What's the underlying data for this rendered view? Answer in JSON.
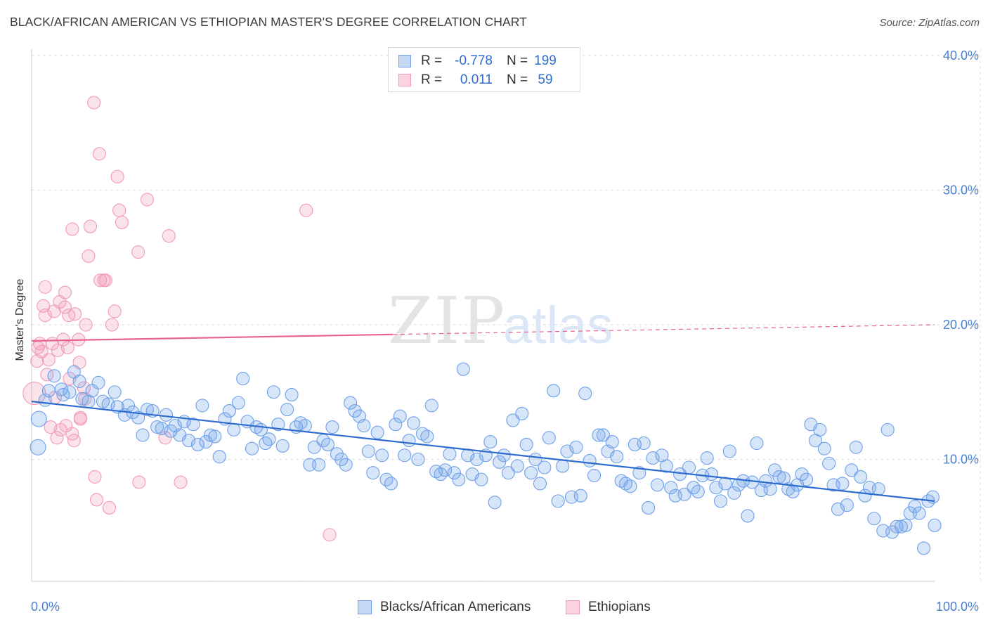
{
  "title": "BLACK/AFRICAN AMERICAN VS ETHIOPIAN MASTER'S DEGREE CORRELATION CHART",
  "source": "Source: ZipAtlas.com",
  "watermark": {
    "zip": "ZIP",
    "atlas": "atlas"
  },
  "legend": {
    "rows": [
      {
        "r_label": "R =",
        "r_value": "-0.778",
        "n_label": "N =",
        "n_value": "199",
        "color": "#6fa0e8"
      },
      {
        "r_label": "R =",
        "r_value": "0.011",
        "n_label": "N =",
        "n_value": "59",
        "color": "#f29ab6"
      }
    ]
  },
  "bottom_legend": [
    "Blacks/African Americans",
    "Ethiopians"
  ],
  "colors": {
    "blue": "#6fa0e8",
    "blue_line": "#2f6ccf",
    "pink": "#f29ab6",
    "pink_line": "#e8638f",
    "axis_text": "#4a7fd0"
  },
  "chart_data": {
    "type": "scatter",
    "ylabel": "Master's Degree",
    "x_tick_labels": [
      "0.0%",
      "100.0%"
    ],
    "y_tick_labels": [
      "10.0%",
      "20.0%",
      "30.0%",
      "40.0%"
    ],
    "xlim": [
      0,
      100
    ],
    "ylim": [
      0,
      40
    ],
    "grid": true,
    "series": [
      {
        "name": "Blacks/African Americans",
        "trend": {
          "x": [
            0,
            100
          ],
          "y": [
            14.3,
            6.9
          ]
        },
        "points": [
          [
            0.7,
            10.9
          ],
          [
            0.8,
            13.0
          ],
          [
            1.5,
            14.4
          ],
          [
            1.9,
            15.1
          ],
          [
            2.5,
            16.2
          ],
          [
            3.3,
            15.2
          ],
          [
            3.5,
            14.8
          ],
          [
            4.2,
            15.0
          ],
          [
            4.7,
            16.5
          ],
          [
            5.3,
            15.8
          ],
          [
            5.6,
            14.5
          ],
          [
            6.3,
            14.3
          ],
          [
            6.7,
            15.1
          ],
          [
            7.4,
            15.7
          ],
          [
            7.9,
            14.3
          ],
          [
            8.5,
            14.1
          ],
          [
            9.2,
            15.0
          ],
          [
            9.5,
            13.9
          ],
          [
            10.3,
            13.3
          ],
          [
            10.7,
            14.0
          ],
          [
            11.2,
            13.5
          ],
          [
            11.8,
            13.1
          ],
          [
            12.3,
            11.8
          ],
          [
            12.8,
            13.7
          ],
          [
            13.4,
            13.6
          ],
          [
            13.9,
            12.4
          ],
          [
            14.4,
            12.3
          ],
          [
            14.9,
            13.3
          ],
          [
            15.4,
            12.1
          ],
          [
            15.9,
            12.5
          ],
          [
            16.4,
            11.8
          ],
          [
            16.9,
            12.8
          ],
          [
            17.4,
            11.4
          ],
          [
            17.9,
            12.6
          ],
          [
            18.4,
            11.1
          ],
          [
            18.9,
            14.0
          ],
          [
            19.3,
            11.3
          ],
          [
            19.8,
            11.8
          ],
          [
            20.3,
            11.7
          ],
          [
            20.8,
            10.2
          ],
          [
            21.4,
            13.0
          ],
          [
            21.9,
            13.6
          ],
          [
            22.4,
            12.2
          ],
          [
            22.9,
            14.2
          ],
          [
            23.4,
            16.0
          ],
          [
            23.9,
            12.8
          ],
          [
            24.4,
            10.8
          ],
          [
            24.9,
            12.4
          ],
          [
            25.4,
            12.2
          ],
          [
            25.9,
            11.2
          ],
          [
            26.3,
            11.5
          ],
          [
            26.8,
            15.0
          ],
          [
            27.3,
            12.6
          ],
          [
            27.8,
            11.0
          ],
          [
            28.3,
            13.7
          ],
          [
            28.8,
            14.8
          ],
          [
            29.3,
            12.4
          ],
          [
            29.8,
            12.7
          ],
          [
            30.3,
            12.5
          ],
          [
            30.8,
            9.6
          ],
          [
            31.3,
            10.9
          ],
          [
            31.8,
            9.6
          ],
          [
            32.3,
            11.4
          ],
          [
            32.8,
            11.1
          ],
          [
            33.3,
            12.4
          ],
          [
            33.8,
            10.4
          ],
          [
            34.3,
            10.0
          ],
          [
            34.8,
            9.6
          ],
          [
            35.3,
            14.2
          ],
          [
            35.8,
            13.6
          ],
          [
            36.3,
            13.2
          ],
          [
            36.8,
            12.5
          ],
          [
            37.3,
            10.6
          ],
          [
            37.8,
            9.0
          ],
          [
            38.3,
            12.0
          ],
          [
            38.8,
            10.3
          ],
          [
            39.3,
            8.5
          ],
          [
            39.8,
            8.2
          ],
          [
            40.3,
            12.6
          ],
          [
            40.8,
            13.2
          ],
          [
            41.3,
            10.3
          ],
          [
            41.8,
            11.4
          ],
          [
            42.3,
            12.7
          ],
          [
            42.8,
            10.0
          ],
          [
            43.3,
            11.9
          ],
          [
            43.8,
            11.7
          ],
          [
            44.3,
            14.0
          ],
          [
            44.8,
            9.1
          ],
          [
            45.3,
            8.9
          ],
          [
            45.8,
            9.2
          ],
          [
            46.3,
            10.4
          ],
          [
            46.8,
            9.0
          ],
          [
            47.3,
            8.5
          ],
          [
            47.8,
            16.7
          ],
          [
            48.3,
            10.3
          ],
          [
            48.8,
            8.9
          ],
          [
            49.3,
            10.0
          ],
          [
            49.8,
            8.5
          ],
          [
            50.3,
            10.3
          ],
          [
            50.8,
            11.3
          ],
          [
            51.3,
            6.8
          ],
          [
            51.8,
            9.8
          ],
          [
            52.3,
            10.3
          ],
          [
            52.8,
            9.0
          ],
          [
            53.3,
            12.9
          ],
          [
            53.8,
            9.5
          ],
          [
            54.3,
            13.4
          ],
          [
            54.8,
            11.1
          ],
          [
            55.3,
            9.0
          ],
          [
            55.8,
            10.0
          ],
          [
            56.3,
            8.2
          ],
          [
            56.8,
            9.4
          ],
          [
            57.3,
            11.6
          ],
          [
            57.8,
            15.1
          ],
          [
            58.3,
            6.9
          ],
          [
            58.8,
            9.5
          ],
          [
            59.3,
            10.6
          ],
          [
            59.8,
            7.2
          ],
          [
            60.3,
            10.9
          ],
          [
            60.8,
            7.3
          ],
          [
            61.3,
            14.9
          ],
          [
            61.8,
            9.9
          ],
          [
            62.3,
            8.8
          ],
          [
            62.8,
            11.8
          ],
          [
            63.3,
            11.8
          ],
          [
            63.8,
            10.6
          ],
          [
            64.3,
            11.3
          ],
          [
            64.8,
            10.2
          ],
          [
            65.3,
            8.4
          ],
          [
            65.8,
            8.2
          ],
          [
            66.3,
            8.0
          ],
          [
            66.8,
            11.1
          ],
          [
            67.3,
            9.0
          ],
          [
            67.8,
            11.2
          ],
          [
            68.3,
            6.4
          ],
          [
            68.8,
            10.1
          ],
          [
            69.3,
            8.1
          ],
          [
            69.8,
            10.3
          ],
          [
            70.3,
            9.5
          ],
          [
            70.8,
            7.9
          ],
          [
            71.3,
            7.3
          ],
          [
            71.8,
            8.9
          ],
          [
            72.3,
            7.4
          ],
          [
            72.8,
            9.4
          ],
          [
            73.3,
            7.9
          ],
          [
            73.8,
            7.6
          ],
          [
            74.3,
            8.8
          ],
          [
            74.8,
            10.1
          ],
          [
            75.3,
            8.9
          ],
          [
            75.8,
            7.9
          ],
          [
            76.3,
            6.9
          ],
          [
            76.8,
            8.2
          ],
          [
            77.3,
            10.6
          ],
          [
            77.8,
            7.5
          ],
          [
            78.3,
            8.1
          ],
          [
            78.8,
            8.4
          ],
          [
            79.3,
            5.8
          ],
          [
            79.8,
            8.3
          ],
          [
            80.3,
            11.2
          ],
          [
            80.8,
            7.7
          ],
          [
            81.3,
            8.4
          ],
          [
            81.8,
            7.8
          ],
          [
            82.3,
            9.2
          ],
          [
            82.8,
            8.7
          ],
          [
            83.3,
            8.6
          ],
          [
            83.8,
            7.8
          ],
          [
            84.3,
            7.6
          ],
          [
            84.8,
            8.1
          ],
          [
            85.3,
            8.9
          ],
          [
            85.8,
            8.5
          ],
          [
            86.3,
            12.6
          ],
          [
            86.8,
            11.4
          ],
          [
            87.3,
            12.2
          ],
          [
            87.8,
            10.8
          ],
          [
            88.3,
            9.7
          ],
          [
            88.8,
            8.1
          ],
          [
            89.3,
            6.3
          ],
          [
            89.8,
            8.2
          ],
          [
            90.3,
            6.6
          ],
          [
            90.8,
            9.2
          ],
          [
            91.3,
            10.9
          ],
          [
            91.8,
            8.7
          ],
          [
            92.3,
            7.3
          ],
          [
            92.8,
            7.9
          ],
          [
            93.3,
            5.6
          ],
          [
            93.8,
            7.8
          ],
          [
            94.3,
            4.7
          ],
          [
            94.8,
            12.2
          ],
          [
            95.3,
            4.6
          ],
          [
            95.8,
            5.0
          ],
          [
            96.3,
            5.0
          ],
          [
            96.8,
            5.1
          ],
          [
            97.3,
            6.0
          ],
          [
            97.8,
            6.5
          ],
          [
            98.3,
            6.0
          ],
          [
            98.8,
            3.4
          ],
          [
            99.3,
            6.9
          ],
          [
            99.8,
            7.2
          ],
          [
            100.0,
            5.1
          ]
        ]
      },
      {
        "name": "Ethiopians",
        "trend": {
          "x": [
            0,
            100
          ],
          "y": [
            18.8,
            20.0
          ],
          "solid_until_x": 40
        },
        "points": [
          [
            0.3,
            14.9
          ],
          [
            0.6,
            17.3
          ],
          [
            0.7,
            18.3
          ],
          [
            0.9,
            18.6
          ],
          [
            1.1,
            18.0
          ],
          [
            1.3,
            21.4
          ],
          [
            1.5,
            20.7
          ],
          [
            1.5,
            22.8
          ],
          [
            1.7,
            16.3
          ],
          [
            1.9,
            17.4
          ],
          [
            2.1,
            12.4
          ],
          [
            2.3,
            18.6
          ],
          [
            2.5,
            21.0
          ],
          [
            2.8,
            11.6
          ],
          [
            2.9,
            18.1
          ],
          [
            3.1,
            21.7
          ],
          [
            3.2,
            12.2
          ],
          [
            3.5,
            18.9
          ],
          [
            3.7,
            22.4
          ],
          [
            3.7,
            21.3
          ],
          [
            3.8,
            12.5
          ],
          [
            4.0,
            18.3
          ],
          [
            4.1,
            20.7
          ],
          [
            4.5,
            11.9
          ],
          [
            4.5,
            27.1
          ],
          [
            4.7,
            11.4
          ],
          [
            4.8,
            20.8
          ],
          [
            5.2,
            18.9
          ],
          [
            5.4,
            13.1
          ],
          [
            5.4,
            13.0
          ],
          [
            5.8,
            15.3
          ],
          [
            5.9,
            14.5
          ],
          [
            6.0,
            20.0
          ],
          [
            6.3,
            25.1
          ],
          [
            6.5,
            27.3
          ],
          [
            6.9,
            36.5
          ],
          [
            7.0,
            8.7
          ],
          [
            7.2,
            7.0
          ],
          [
            7.5,
            32.7
          ],
          [
            7.6,
            23.3
          ],
          [
            8.0,
            23.3
          ],
          [
            8.2,
            23.3
          ],
          [
            8.6,
            6.4
          ],
          [
            8.9,
            20.0
          ],
          [
            9.2,
            21.0
          ],
          [
            9.5,
            31.0
          ],
          [
            9.7,
            28.5
          ],
          [
            10.0,
            27.6
          ],
          [
            11.8,
            25.4
          ],
          [
            11.9,
            8.3
          ],
          [
            12.8,
            29.3
          ],
          [
            14.8,
            11.6
          ],
          [
            15.2,
            26.6
          ],
          [
            16.5,
            8.3
          ],
          [
            30.4,
            28.5
          ],
          [
            33.0,
            4.4
          ],
          [
            5.3,
            17.2
          ],
          [
            2.6,
            14.6
          ],
          [
            4.2,
            16.0
          ]
        ]
      }
    ]
  }
}
